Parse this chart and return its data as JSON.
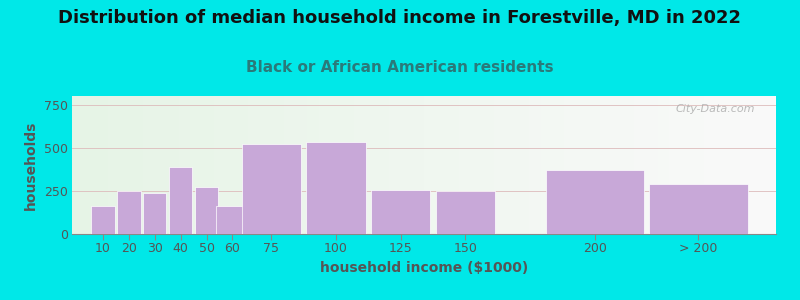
{
  "title": "Distribution of median household income in Forestville, MD in 2022",
  "subtitle": "Black or African American residents",
  "xlabel": "household income ($1000)",
  "ylabel": "households",
  "bar_color": "#c8a8d8",
  "background_outer": "#00e8e8",
  "background_inner_left": "#e6f4e6",
  "background_inner_right": "#f8f8f8",
  "categories": [
    "10",
    "20",
    "30",
    "40",
    "50",
    "60",
    "75",
    "100",
    "125",
    "150",
    "200",
    "> 200"
  ],
  "values": [
    160,
    250,
    235,
    390,
    275,
    160,
    520,
    535,
    255,
    248,
    370,
    290
  ],
  "bar_positions": [
    10,
    20,
    30,
    40,
    50,
    60,
    75,
    100,
    125,
    150,
    200,
    240
  ],
  "bar_widths": [
    9,
    9,
    9,
    9,
    9,
    13,
    23,
    23,
    23,
    23,
    38,
    38
  ],
  "ylim": [
    0,
    800
  ],
  "yticks": [
    0,
    250,
    500,
    750
  ],
  "title_fontsize": 13,
  "subtitle_fontsize": 11,
  "axis_label_fontsize": 10,
  "tick_fontsize": 9,
  "title_color": "#111111",
  "subtitle_color": "#2a7a7a",
  "axis_label_color": "#555555",
  "tick_color": "#555555",
  "watermark": "City-Data.com",
  "watermark_color": "#aaaaaa"
}
